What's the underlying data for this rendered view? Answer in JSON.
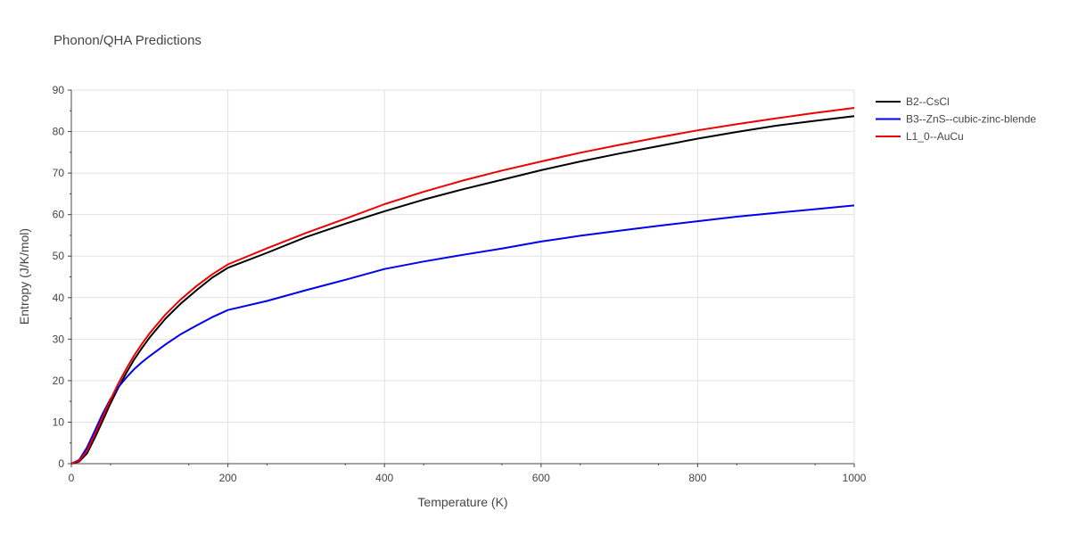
{
  "chart_data": {
    "type": "line",
    "title": "Phonon/QHA Predictions",
    "xlabel": "Temperature (K)",
    "ylabel": "Entropy (J/K/mol)",
    "xlim": [
      0,
      1000
    ],
    "ylim": [
      0,
      90
    ],
    "xticks": [
      0,
      200,
      400,
      600,
      800,
      1000
    ],
    "yticks": [
      0,
      10,
      20,
      30,
      40,
      50,
      60,
      70,
      80,
      90
    ],
    "grid": true,
    "legend_position": "top-right",
    "series": [
      {
        "name": "B2--CsCl",
        "color": "#000000",
        "x": [
          0,
          10,
          20,
          30,
          40,
          50,
          60,
          70,
          80,
          90,
          100,
          120,
          140,
          160,
          180,
          200,
          250,
          300,
          350,
          400,
          450,
          500,
          550,
          600,
          650,
          700,
          750,
          800,
          850,
          900,
          950,
          1000
        ],
        "y": [
          0,
          0.5,
          2.5,
          6.2,
          10.3,
          14.5,
          18.3,
          21.8,
          25.0,
          27.8,
          30.4,
          34.9,
          38.6,
          41.8,
          44.8,
          47.2,
          50.8,
          54.6,
          57.8,
          60.8,
          63.6,
          66.1,
          68.4,
          70.7,
          72.8,
          74.7,
          76.5,
          78.3,
          79.9,
          81.4,
          82.6,
          83.7
        ]
      },
      {
        "name": "B3--ZnS--cubic-zinc-blende",
        "color": "#0000ee",
        "x": [
          0,
          10,
          20,
          30,
          40,
          50,
          60,
          70,
          80,
          90,
          100,
          120,
          140,
          160,
          180,
          200,
          250,
          300,
          350,
          400,
          450,
          500,
          550,
          600,
          650,
          700,
          750,
          800,
          850,
          900,
          950,
          1000
        ],
        "y": [
          0,
          0.9,
          3.9,
          7.9,
          12.0,
          15.6,
          18.4,
          20.7,
          22.7,
          24.4,
          25.9,
          28.7,
          31.2,
          33.3,
          35.3,
          37.0,
          39.2,
          41.8,
          44.3,
          46.9,
          48.7,
          50.3,
          51.8,
          53.5,
          54.9,
          56.1,
          57.3,
          58.4,
          59.5,
          60.4,
          61.3,
          62.2
        ]
      },
      {
        "name": "L1_0--AuCu",
        "color": "#ee0000",
        "x": [
          0,
          10,
          20,
          30,
          40,
          50,
          60,
          70,
          80,
          90,
          100,
          120,
          140,
          160,
          180,
          200,
          250,
          300,
          350,
          400,
          450,
          500,
          550,
          600,
          650,
          700,
          750,
          800,
          850,
          900,
          950,
          1000
        ],
        "y": [
          0,
          0.7,
          3.1,
          7.0,
          11.2,
          15.4,
          19.3,
          22.8,
          26.0,
          28.8,
          31.4,
          35.9,
          39.6,
          42.8,
          45.6,
          48.0,
          51.9,
          55.6,
          59.0,
          62.5,
          65.5,
          68.2,
          70.6,
          72.8,
          74.9,
          76.8,
          78.6,
          80.3,
          81.8,
          83.2,
          84.5,
          85.7
        ]
      }
    ]
  }
}
